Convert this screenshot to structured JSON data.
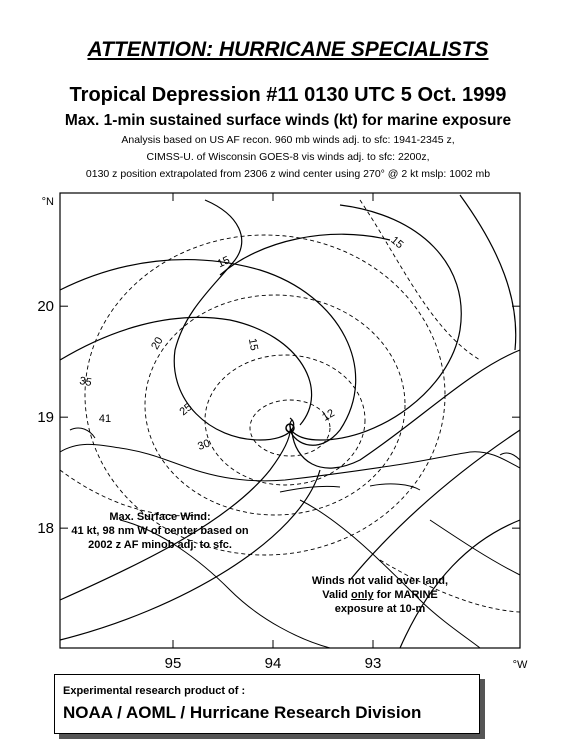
{
  "header": {
    "title": "ATTENTION: HURRICANE SPECIALISTS",
    "storm": "Tropical Depression #11 0130 UTC 5 Oct. 1999",
    "subtitle": "Max. 1-min sustained surface winds (kt) for marine exposure",
    "notes": [
      "Analysis based on US AF recon. 960 mb winds adj. to sfc:  1941-2345 z,",
      "CIMSS-U. of Wisconsin GOES-8 vis winds adj. to sfc: 2200z,",
      "0130 z position extrapolated from 2306 z wind center using  270° @ 2 kt  mslp: 1002 mb"
    ]
  },
  "map": {
    "xlim": [
      96.13,
      91.53
    ],
    "ylim": [
      16.92,
      21.02
    ],
    "xticks": [
      95,
      94,
      93
    ],
    "yticks": [
      18,
      19,
      20
    ],
    "x_unit": "°W",
    "y_unit": "°N",
    "contour_labels": [
      "15",
      "15",
      "20",
      "25",
      "30",
      "35",
      "41",
      "15",
      "12"
    ],
    "max_wind_note": [
      "Max. Surface Wind:",
      "41 kt, 98 nm W of center based on",
      "2002 z AF minob adj. to sfc."
    ],
    "land_note": {
      "line1": "Winds not valid over land,",
      "line2_a": "Valid ",
      "line2_b": "only",
      "line2_c": " for MARINE",
      "line3": "exposure at 10-m"
    }
  },
  "footer": {
    "line1": "Experimental research product of :",
    "line2": "NOAA / AOML / Hurricane Research Division"
  }
}
